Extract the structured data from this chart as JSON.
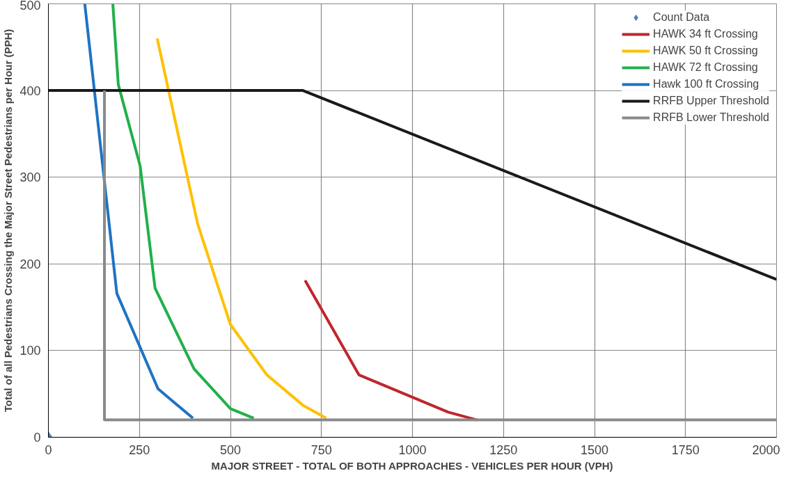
{
  "chart_data": {
    "type": "line",
    "xlabel": "MAJOR STREET - TOTAL OF BOTH APPROACHES - VEHICLES PER HOUR (VPH)",
    "ylabel": "Total of all Pedestrians Crossing the Major Street Pedestrians per Hour (PPH)",
    "xlim": [
      0,
      2000
    ],
    "ylim": [
      0,
      500
    ],
    "xticks": [
      0,
      250,
      500,
      750,
      1000,
      1250,
      1500,
      1750,
      2000
    ],
    "yticks": [
      0,
      100,
      200,
      300,
      400,
      500
    ],
    "grid": true,
    "legend": "top right",
    "series": [
      {
        "name": "Count Data",
        "type": "scatter",
        "marker": "diamond",
        "color": "#4f81bd",
        "x": [
          0
        ],
        "values": [
          0
        ]
      },
      {
        "name": "HAWK 34 ft Crossing",
        "color": "#c0262d",
        "x": [
          705,
          853,
          1098,
          1177
        ],
        "values": [
          181,
          72,
          29,
          20
        ]
      },
      {
        "name": "HAWK 50 ft Crossing",
        "color": "#ffc000",
        "x": [
          299,
          410,
          500,
          600,
          699,
          763
        ],
        "values": [
          460,
          246,
          130,
          72,
          37,
          22
        ]
      },
      {
        "name": "HAWK 72 ft Crossing",
        "color": "#21b04b",
        "x": [
          177,
          192,
          252,
          293,
          400,
          500,
          564
        ],
        "values": [
          500,
          407,
          313,
          172,
          79,
          33,
          22
        ]
      },
      {
        "name": "Hawk 100 ft Crossing",
        "color": "#1f73c2",
        "x": [
          100,
          188,
          301,
          397
        ],
        "values": [
          500,
          166,
          56,
          22
        ]
      },
      {
        "name": "RRFB Upper Threshold",
        "color": "#1a1a1a",
        "x": [
          0,
          699,
          2000
        ],
        "values": [
          400,
          400,
          182
        ]
      },
      {
        "name": "RRFB Lower Threshold",
        "color": "#898989",
        "x": [
          154,
          154,
          2000
        ],
        "values": [
          400,
          20,
          20
        ]
      }
    ]
  }
}
